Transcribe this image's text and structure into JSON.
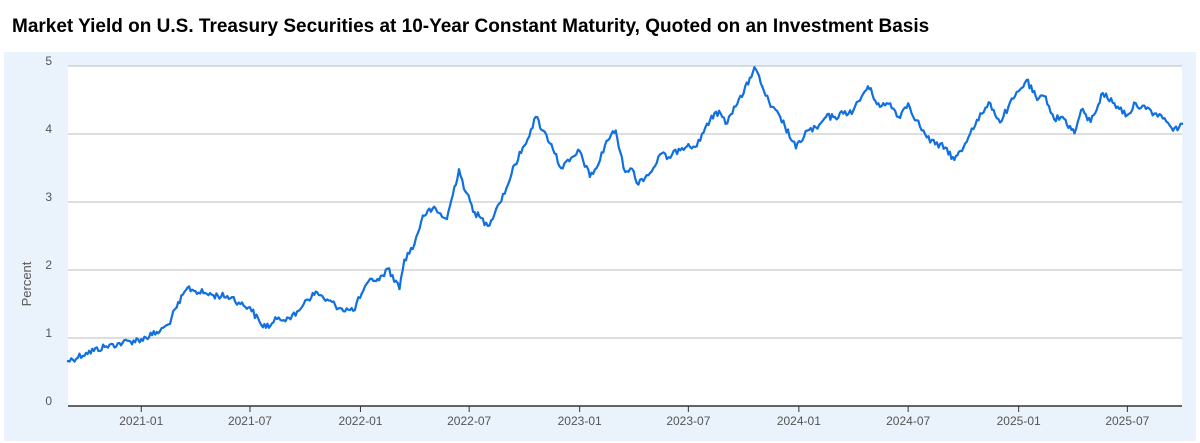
{
  "chart_data": {
    "type": "line",
    "title": "Market Yield on U.S. Treasury Securities at 10-Year Constant Maturity, Quoted on an Investment Basis",
    "xlabel": "",
    "ylabel": "Percent",
    "ylim": [
      0,
      5
    ],
    "xlim": [
      "2020-09-01",
      "2025-09-30"
    ],
    "y_ticks": [
      "0",
      "1",
      "2",
      "3",
      "4",
      "5"
    ],
    "x_ticks": [
      "2021-01",
      "2021-07",
      "2022-01",
      "2022-07",
      "2023-01",
      "2023-07",
      "2024-01",
      "2024-07",
      "2025-01",
      "2025-07"
    ],
    "grid": true,
    "line_color": "#1170e0",
    "series": [
      {
        "x": [
          "2020-09-01",
          "2020-10-01",
          "2020-11-01",
          "2020-12-01",
          "2021-01-01",
          "2021-02-01",
          "2021-02-15",
          "2021-03-01",
          "2021-03-19",
          "2021-04-01",
          "2021-05-01",
          "2021-06-01",
          "2021-06-15",
          "2021-07-01",
          "2021-07-20",
          "2021-08-04",
          "2021-08-15",
          "2021-09-01",
          "2021-09-15",
          "2021-10-01",
          "2021-10-21",
          "2021-11-01",
          "2021-12-01",
          "2021-12-20",
          "2022-01-03",
          "2022-01-20",
          "2022-02-01",
          "2022-02-15",
          "2022-03-01",
          "2022-03-07",
          "2022-03-15",
          "2022-04-01",
          "2022-04-15",
          "2022-05-01",
          "2022-05-25",
          "2022-06-14",
          "2022-06-25",
          "2022-07-10",
          "2022-08-01",
          "2022-08-15",
          "2022-09-01",
          "2022-09-15",
          "2022-10-01",
          "2022-10-20",
          "2022-11-01",
          "2022-11-15",
          "2022-12-01",
          "2022-12-15",
          "2023-01-01",
          "2023-01-18",
          "2023-02-01",
          "2023-02-15",
          "2023-03-02",
          "2023-03-15",
          "2023-04-01",
          "2023-04-06",
          "2023-05-01",
          "2023-05-15",
          "2023-06-01",
          "2023-06-15",
          "2023-07-01",
          "2023-07-15",
          "2023-08-01",
          "2023-08-21",
          "2023-09-01",
          "2023-09-15",
          "2023-10-01",
          "2023-10-19",
          "2023-11-01",
          "2023-11-15",
          "2023-12-01",
          "2023-12-27",
          "2024-01-15",
          "2024-02-01",
          "2024-02-15",
          "2024-03-01",
          "2024-03-15",
          "2024-04-01",
          "2024-04-25",
          "2024-05-15",
          "2024-06-01",
          "2024-06-15",
          "2024-07-01",
          "2024-07-15",
          "2024-08-01",
          "2024-08-15",
          "2024-09-01",
          "2024-09-16",
          "2024-10-01",
          "2024-10-15",
          "2024-11-01",
          "2024-11-15",
          "2024-12-01",
          "2024-12-15",
          "2025-01-14",
          "2025-02-01",
          "2025-02-15",
          "2025-03-01",
          "2025-03-15",
          "2025-04-04",
          "2025-04-15",
          "2025-05-01",
          "2025-05-21",
          "2025-06-15",
          "2025-07-01",
          "2025-07-15",
          "2025-08-01",
          "2025-08-15",
          "2025-09-01",
          "2025-09-15",
          "2025-09-30"
        ],
        "values": [
          0.66,
          0.78,
          0.87,
          0.93,
          0.98,
          1.1,
          1.2,
          1.45,
          1.74,
          1.69,
          1.63,
          1.6,
          1.5,
          1.45,
          1.19,
          1.18,
          1.28,
          1.3,
          1.33,
          1.55,
          1.67,
          1.58,
          1.43,
          1.4,
          1.65,
          1.87,
          1.85,
          2.02,
          1.84,
          1.72,
          2.15,
          2.38,
          2.8,
          2.9,
          2.75,
          3.48,
          3.15,
          2.85,
          2.65,
          2.9,
          3.2,
          3.55,
          3.83,
          4.25,
          4.05,
          3.85,
          3.5,
          3.6,
          3.75,
          3.37,
          3.55,
          3.9,
          4.05,
          3.5,
          3.45,
          3.28,
          3.45,
          3.7,
          3.65,
          3.78,
          3.85,
          3.82,
          4.15,
          4.34,
          4.15,
          4.4,
          4.6,
          4.98,
          4.7,
          4.4,
          4.25,
          3.79,
          4.05,
          4.08,
          4.25,
          4.25,
          4.3,
          4.35,
          4.7,
          4.4,
          4.45,
          4.25,
          4.45,
          4.2,
          3.95,
          3.85,
          3.8,
          3.62,
          3.8,
          4.08,
          4.3,
          4.45,
          4.17,
          4.4,
          4.79,
          4.5,
          4.55,
          4.22,
          4.25,
          4.01,
          4.35,
          4.18,
          4.6,
          4.4,
          4.28,
          4.45,
          4.37,
          4.3,
          4.23,
          4.05,
          4.15
        ]
      }
    ]
  }
}
